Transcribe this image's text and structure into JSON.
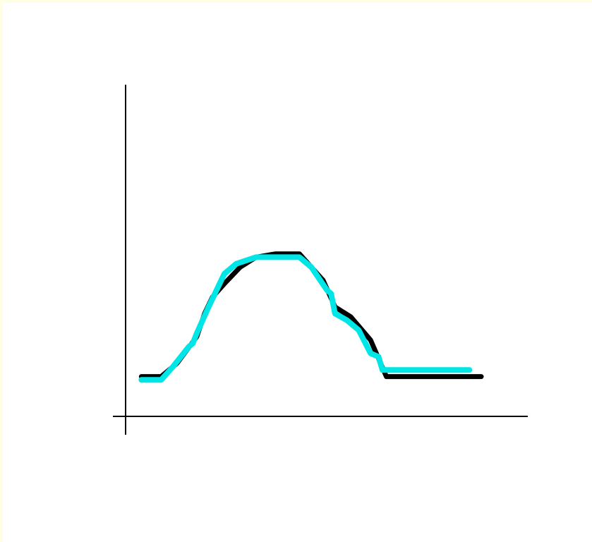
{
  "chart_data": {
    "type": "line",
    "title": "",
    "xlabel": "",
    "ylabel": "",
    "grid": false,
    "legend": "none",
    "xlim": [
      0,
      100
    ],
    "ylim": [
      0,
      100
    ],
    "series": [
      {
        "color": "#000000",
        "points": [
          [
            4,
            12
          ],
          [
            9,
            12
          ],
          [
            13,
            16
          ],
          [
            18,
            24
          ],
          [
            20,
            31
          ],
          [
            22,
            36
          ],
          [
            25,
            40
          ],
          [
            29,
            45
          ],
          [
            33,
            48
          ],
          [
            38,
            49
          ],
          [
            44,
            49
          ],
          [
            47,
            45
          ],
          [
            50,
            41
          ],
          [
            53,
            33
          ],
          [
            57,
            30
          ],
          [
            62,
            23
          ],
          [
            66,
            12
          ],
          [
            73,
            12
          ],
          [
            80,
            12
          ],
          [
            90,
            12
          ]
        ]
      },
      {
        "color": "#00e6e6",
        "points": [
          [
            4,
            11
          ],
          [
            9,
            11
          ],
          [
            12,
            15
          ],
          [
            16,
            21
          ],
          [
            17,
            22
          ],
          [
            18,
            25
          ],
          [
            21,
            33
          ],
          [
            23,
            38
          ],
          [
            25,
            43
          ],
          [
            28,
            46
          ],
          [
            33,
            48
          ],
          [
            39,
            48
          ],
          [
            44,
            48
          ],
          [
            47,
            45
          ],
          [
            51,
            38
          ],
          [
            52,
            37
          ],
          [
            53,
            31
          ],
          [
            56,
            29
          ],
          [
            59,
            26
          ],
          [
            62,
            19
          ],
          [
            64,
            18
          ],
          [
            65,
            14
          ],
          [
            70,
            14
          ],
          [
            80,
            14
          ],
          [
            87,
            14
          ]
        ]
      }
    ]
  }
}
